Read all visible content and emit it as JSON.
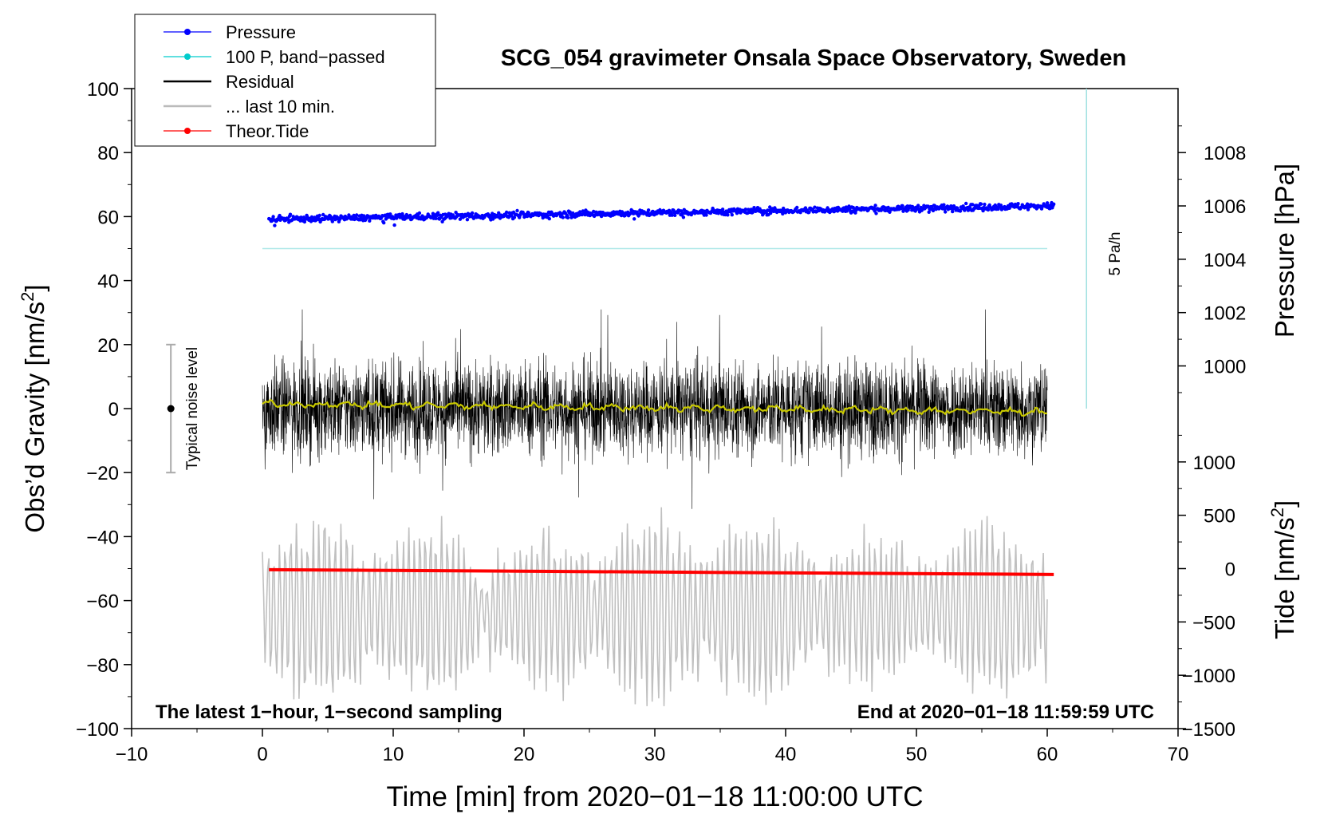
{
  "chart_data": {
    "type": "line",
    "title": "SCG_054 gravimeter Onsala Space Observatory, Sweden",
    "xlabel": "Time [min] from 2020−01−18 11:00:00 UTC",
    "ylabel_left_main": "Obs’d Gravity [nm/s",
    "ylabel_left_sup": "2",
    "ylabel_left_end": "]",
    "ylabel_pressure": "Pressure [hPa]",
    "ylabel_tide_main": "Tide [nm/s",
    "ylabel_tide_sup": "2",
    "ylabel_tide_end": "]",
    "xlim": [
      -10,
      70
    ],
    "ylim": [
      -100,
      100
    ],
    "x_ticks": [
      -10,
      0,
      10,
      20,
      30,
      40,
      50,
      60,
      70
    ],
    "x_tick_labels": [
      "−10",
      "0",
      "10",
      "20",
      "30",
      "40",
      "50",
      "60",
      "70"
    ],
    "y_ticks": [
      -100,
      -80,
      -60,
      -40,
      -20,
      0,
      20,
      40,
      60,
      80,
      100
    ],
    "y_tick_labels": [
      "−100",
      "−80",
      "−60",
      "−40",
      "−20",
      "0",
      "20",
      "40",
      "60",
      "80",
      "100"
    ],
    "pressure_axis": {
      "range": [
        998.4,
        1010.4
      ],
      "ticks": [
        1000,
        1002,
        1004,
        1006,
        1008
      ],
      "tick_labels": [
        "1000",
        "1002",
        "1004",
        "1006",
        "1008"
      ]
    },
    "tide_axis": {
      "range": [
        -1500,
        1500
      ],
      "ticks": [
        -1500,
        -1000,
        -500,
        0,
        500,
        1000
      ],
      "tick_labels": [
        "−1500",
        "−1000",
        "−500",
        "0",
        "500",
        "1000"
      ]
    },
    "legend": {
      "position": "top-left",
      "items": [
        {
          "label": "Pressure",
          "color": "#0000ff",
          "style": "line-marker"
        },
        {
          "label": "100 P, band−passed",
          "color": "#00cccc",
          "style": "line-marker"
        },
        {
          "label": "Residual",
          "color": "#000000",
          "style": "line"
        },
        {
          "label": "... last 10 min.",
          "color": "#bbbbbb",
          "style": "line"
        },
        {
          "label": "Theor.Tide",
          "color": "#ff0000",
          "style": "line-marker"
        }
      ]
    },
    "series": [
      {
        "name": "Pressure",
        "axis": "pressure",
        "color": "#0000ff",
        "x_range": [
          0.5,
          60.5
        ],
        "start": 1005.5,
        "end": 1006.0,
        "spread": 0.12
      },
      {
        "name": "100 P, band-passed",
        "axis": "gravity",
        "color": "#aee8e8",
        "x_range": [
          0,
          60
        ],
        "value": 50
      },
      {
        "name": "Residual",
        "axis": "gravity",
        "color": "#000000",
        "x_range": [
          0,
          60
        ],
        "mean": 0,
        "typical_amplitude": 12,
        "min": -32,
        "max": 31
      },
      {
        "name": "Residual smoothed",
        "axis": "gravity",
        "color": "#c8c800",
        "x_range": [
          0,
          60
        ],
        "start": 1.5,
        "end": -1
      },
      {
        "name": "... last 10 min.",
        "axis": "gravity",
        "color": "#c0c0c0",
        "x_range": [
          0,
          60
        ],
        "center": -63,
        "min": -93,
        "max": -30
      },
      {
        "name": "Theor.Tide",
        "axis": "tide",
        "color": "#ff0000",
        "x_range": [
          0.5,
          60.5
        ],
        "start": -10,
        "end": -55
      }
    ],
    "rate_bar": {
      "label": "5 Pa/h",
      "x": 63,
      "y_from": 0,
      "y_to": 100,
      "color": "#9ee0e0"
    },
    "noise_bar": {
      "label": "Typical noise level",
      "x": -7,
      "y_from": -20,
      "y_to": 20,
      "center": 0
    },
    "annotation_left": "The latest 1−hour, 1−second sampling",
    "annotation_right": "End at 2020−01−18 11:59:59 UTC"
  }
}
